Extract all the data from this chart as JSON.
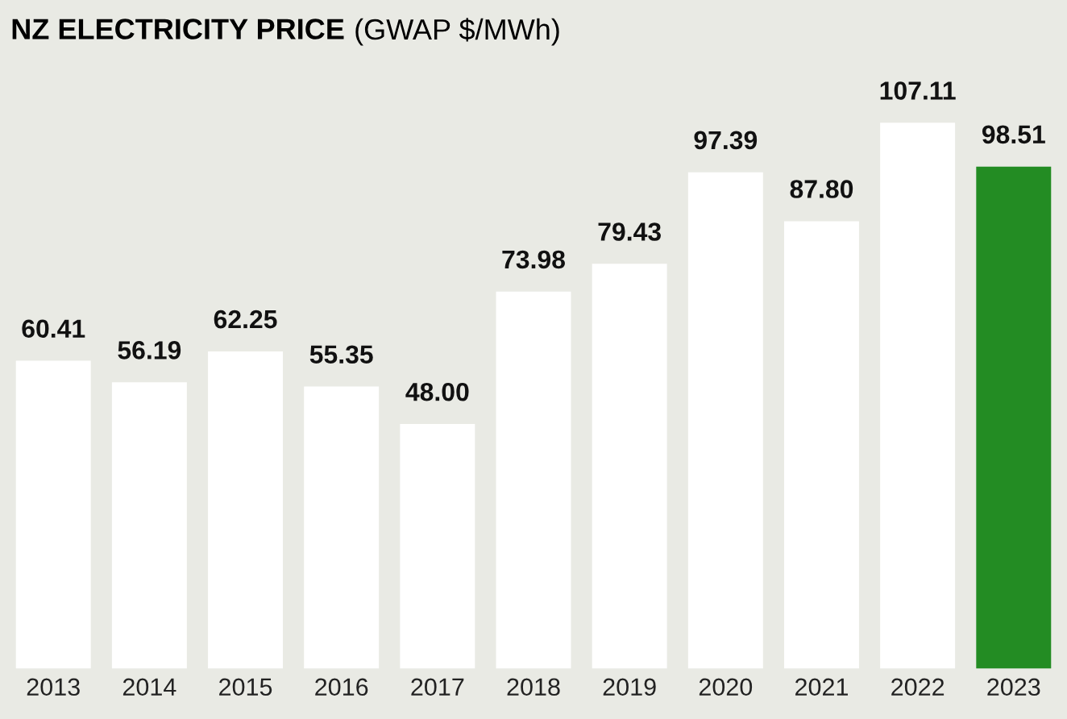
{
  "chart_data": {
    "type": "bar",
    "title": "NZ ELECTRICITY PRICE",
    "subtitle": "(GWAP $/MWh)",
    "categories": [
      "2013",
      "2014",
      "2015",
      "2016",
      "2017",
      "2018",
      "2019",
      "2020",
      "2021",
      "2022",
      "2023"
    ],
    "values": [
      60.41,
      56.19,
      62.25,
      55.35,
      48.0,
      73.98,
      79.43,
      97.39,
      87.8,
      107.11,
      98.51
    ],
    "value_labels": [
      "60.41",
      "56.19",
      "62.25",
      "55.35",
      "48.00",
      "73.98",
      "79.43",
      "97.39",
      "87.80",
      "107.11",
      "98.51"
    ],
    "colors": [
      "#ffffff",
      "#ffffff",
      "#ffffff",
      "#ffffff",
      "#ffffff",
      "#ffffff",
      "#ffffff",
      "#ffffff",
      "#ffffff",
      "#ffffff",
      "#238c23"
    ],
    "grid": false,
    "legend": false
  }
}
